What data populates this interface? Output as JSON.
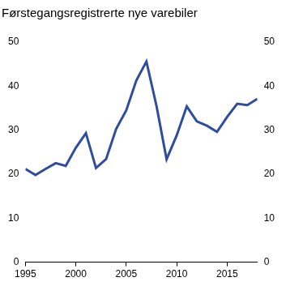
{
  "chart_data": {
    "type": "line",
    "title": "Førstegangsregistrerte nye varebiler",
    "x": [
      1995,
      1996,
      1997,
      1998,
      1999,
      2000,
      2001,
      2002,
      2003,
      2004,
      2005,
      2006,
      2007,
      2008,
      2009,
      2010,
      2011,
      2012,
      2013,
      2014,
      2015,
      2016,
      2017,
      2018
    ],
    "values": [
      21.2,
      19.8,
      21.2,
      22.5,
      21.9,
      26.0,
      29.3,
      21.4,
      23.4,
      30.3,
      34.5,
      41.3,
      45.6,
      35.5,
      23.4,
      28.8,
      35.4,
      32.0,
      31.0,
      29.6,
      33.0,
      36.0,
      35.7,
      37.1
    ],
    "color": "#2e4d9e",
    "xlim": [
      1995,
      2018
    ],
    "xticks": [
      1995,
      2000,
      2005,
      2010,
      2015
    ],
    "ylim": [
      0,
      50
    ],
    "yticks": [
      0,
      10,
      20,
      30,
      40,
      50
    ],
    "y2lim": [
      0,
      50
    ],
    "y2ticks": [
      0,
      10,
      20,
      30,
      40,
      50
    ],
    "grid": false
  }
}
